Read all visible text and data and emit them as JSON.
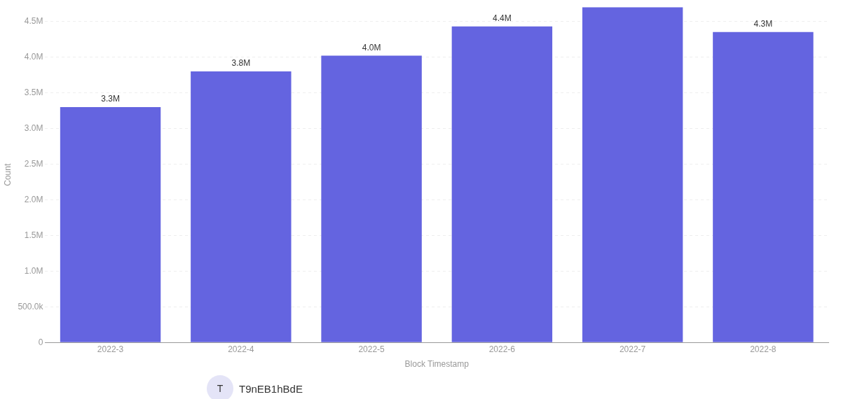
{
  "chart_data": {
    "type": "bar",
    "xlabel": "Block Timestamp",
    "ylabel": "Count",
    "categories": [
      "2022-3",
      "2022-4",
      "2022-5",
      "2022-6",
      "2022-7",
      "2022-8"
    ],
    "values": [
      3300000,
      3800000,
      4020000,
      4430000,
      4700000,
      4350000
    ],
    "value_labels": [
      "3.3M",
      "3.8M",
      "4.0M",
      "4.4M",
      null,
      "4.3M"
    ],
    "color": "#6464e0",
    "ylim": [
      0,
      4700000
    ],
    "yticks": [
      0,
      {
        "value": 500000,
        "label": "500.0k"
      },
      {
        "value": 1000000,
        "label": "1.0M"
      },
      {
        "value": 1500000,
        "label": "1.5M"
      },
      {
        "value": 2000000,
        "label": "2.0M"
      },
      {
        "value": 2500000,
        "label": "2.5M"
      },
      {
        "value": 3000000,
        "label": "3.0M"
      },
      {
        "value": 3500000,
        "label": "3.5M"
      },
      {
        "value": 4000000,
        "label": "4.0M"
      },
      {
        "value": 4500000,
        "label": "4.5M"
      }
    ],
    "grid": "y",
    "legend": false,
    "annotations": [
      "T",
      "T9nEB1hBdE"
    ]
  }
}
